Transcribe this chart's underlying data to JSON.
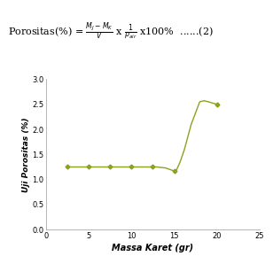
{
  "x": [
    2.5,
    5,
    7.5,
    10,
    12.5,
    13,
    14,
    14.5,
    15,
    15.3,
    15.7,
    16.2,
    17,
    18,
    18.5,
    19,
    20
  ],
  "y": [
    1.25,
    1.25,
    1.25,
    1.25,
    1.25,
    1.25,
    1.23,
    1.2,
    1.17,
    1.2,
    1.35,
    1.6,
    2.1,
    2.55,
    2.57,
    2.55,
    2.5
  ],
  "marker_x": [
    2.5,
    5,
    7.5,
    10,
    12.5,
    15,
    20
  ],
  "marker_y": [
    1.25,
    1.25,
    1.25,
    1.25,
    1.25,
    1.17,
    2.5
  ],
  "line_color": "#8fa020",
  "marker_color": "#8fa020",
  "xlabel": "Massa Karet (gr)",
  "ylabel": "Uji Porositas (%)",
  "xlim": [
    0,
    25
  ],
  "ylim": [
    0,
    3
  ],
  "xticks": [
    0,
    5,
    10,
    15,
    20,
    25
  ],
  "yticks": [
    0,
    0.5,
    1,
    1.5,
    2,
    2.5,
    3
  ],
  "figsize": [
    3.08,
    2.98
  ],
  "dpi": 100
}
